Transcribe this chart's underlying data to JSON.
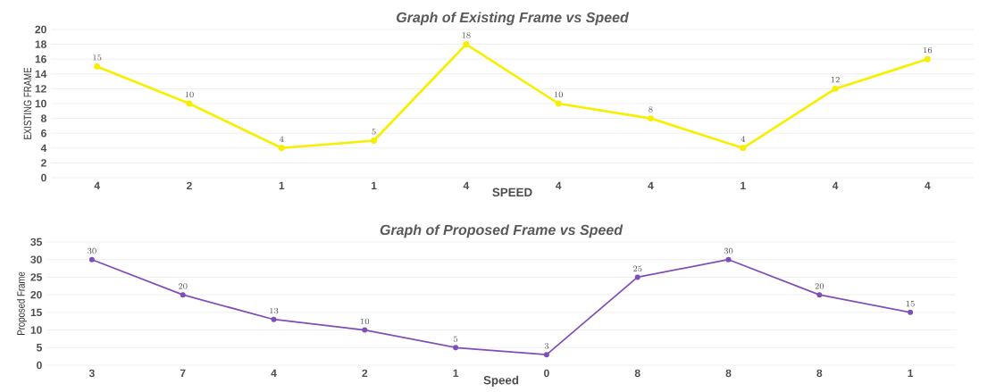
{
  "chart_data": [
    {
      "type": "line",
      "title": "Graph of Existing Frame vs Speed",
      "xlabel": "SPEED",
      "ylabel": "EXISTING FRAME",
      "categories": [
        "4",
        "2",
        "1",
        "1",
        "4",
        "4",
        "4",
        "1",
        "4",
        "4"
      ],
      "series": [
        {
          "color": "#f7ef00",
          "values": [
            15,
            10,
            4,
            5,
            18,
            10,
            8,
            4,
            12,
            16
          ]
        }
      ],
      "ylim": [
        0,
        20
      ],
      "yticks": [
        0,
        2,
        4,
        6,
        8,
        10,
        12,
        14,
        16,
        18,
        20
      ],
      "grid": "y",
      "marker": "circle",
      "data_labels": true
    },
    {
      "type": "line",
      "title": "Graph of Proposed Frame vs Speed",
      "xlabel": "Speed",
      "ylabel": "Proposed Frame",
      "categories": [
        "3",
        "7",
        "4",
        "2",
        "1",
        "0",
        "8",
        "8",
        "8",
        "1"
      ],
      "series": [
        {
          "color": "#7e4fb8",
          "values": [
            30,
            20,
            13,
            10,
            5,
            3,
            25,
            30,
            20,
            15
          ]
        }
      ],
      "ylim": [
        0,
        35
      ],
      "yticks": [
        0,
        5,
        10,
        15,
        20,
        25,
        30,
        35
      ],
      "grid": "y",
      "marker": "circle",
      "data_labels": true
    }
  ]
}
